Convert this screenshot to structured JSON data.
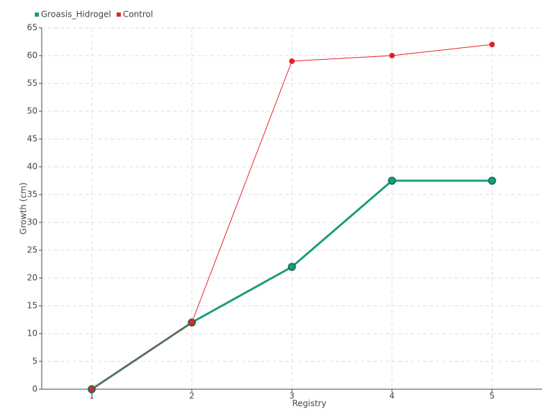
{
  "chart_data": {
    "type": "line",
    "x": [
      1,
      2,
      3,
      4,
      5
    ],
    "xlim": [
      0.5,
      5.5
    ],
    "xticks": [
      1,
      2,
      3,
      4,
      5
    ],
    "ylim": [
      0,
      65
    ],
    "yticks": [
      0,
      5,
      10,
      15,
      20,
      25,
      30,
      35,
      40,
      45,
      50,
      55,
      60,
      65
    ],
    "x_label": "Registry",
    "y_label": "Growth (cm)",
    "grid": true,
    "legend": "top-left",
    "series": [
      {
        "name": "Groasis_Hidrogel",
        "color": "#1a9c7c",
        "values": [
          0,
          12,
          22,
          37.5,
          37.5
        ]
      },
      {
        "name": "Control",
        "color": "#e3202a",
        "values": [
          0,
          12,
          59,
          60,
          62
        ]
      }
    ]
  }
}
